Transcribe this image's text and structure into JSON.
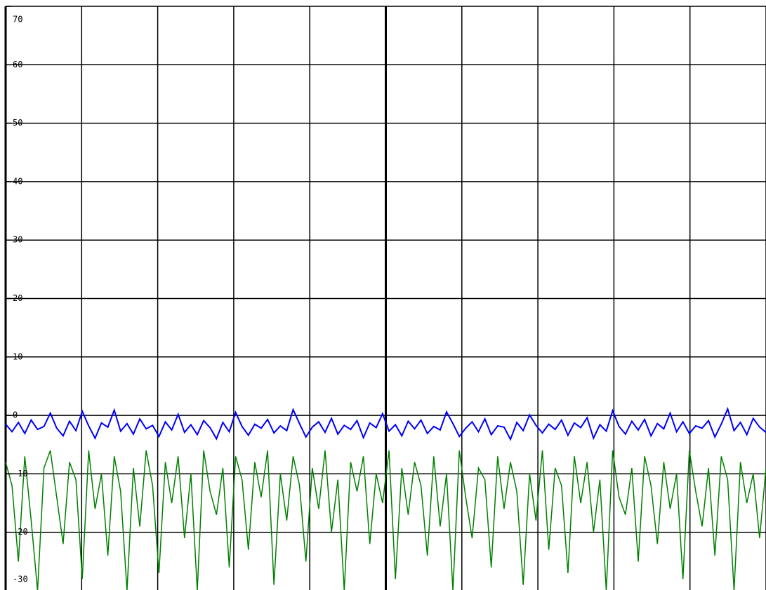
{
  "chart_data": {
    "type": "line",
    "ylim": [
      -30,
      70
    ],
    "yticks": [
      -30,
      -20,
      -10,
      0,
      10,
      20,
      30,
      40,
      50,
      60,
      70
    ],
    "xlim": [
      0,
      10
    ],
    "xticks": [
      0,
      1,
      2,
      3,
      4,
      5,
      6,
      7,
      8,
      9,
      10
    ],
    "grid": true,
    "series": [
      {
        "color": "#0000ff",
        "values": [
          -1.5,
          -2.8,
          -1.2,
          -3.1,
          -0.8,
          -2.4,
          -1.9,
          0.4,
          -2.2,
          -3.5,
          -1.0,
          -2.6,
          0.7,
          -1.8,
          -3.9,
          -1.3,
          -2.0,
          0.9,
          -2.7,
          -1.4,
          -3.2,
          -0.6,
          -2.3,
          -1.7,
          -3.6,
          -1.1,
          -2.5,
          0.2,
          -2.9,
          -1.6,
          -3.3,
          -0.9,
          -2.1,
          -4.0,
          -1.2,
          -2.8,
          0.5,
          -1.9,
          -3.4,
          -1.5,
          -2.2,
          -0.7,
          -3.0,
          -1.8,
          -2.6,
          1.0,
          -1.4,
          -3.7,
          -2.0,
          -1.1,
          -2.9,
          -0.5,
          -3.2,
          -1.7,
          -2.4,
          -0.9,
          -3.8,
          -1.3,
          -2.1,
          0.3,
          -2.7,
          -1.6,
          -3.5,
          -1.0,
          -2.3,
          -0.8,
          -3.1,
          -1.9,
          -2.5,
          0.6,
          -1.4,
          -3.6,
          -2.2,
          -1.1,
          -2.8,
          -0.6,
          -3.3,
          -1.8,
          -2.0,
          -4.1,
          -1.2,
          -2.6,
          0.1,
          -1.7,
          -3.0,
          -1.5,
          -2.4,
          -0.8,
          -3.4,
          -1.3,
          -2.1,
          -0.4,
          -3.9,
          -1.6,
          -2.7,
          0.8,
          -1.9,
          -3.2,
          -1.0,
          -2.5,
          -0.7,
          -3.5,
          -1.4,
          -2.3,
          0.4,
          -2.8,
          -1.1,
          -3.1,
          -1.8,
          -2.2,
          -0.9,
          -3.7,
          -1.5,
          1.1,
          -2.6,
          -1.2,
          -3.3,
          -0.5,
          -2.0,
          -2.9
        ]
      },
      {
        "color": "#008000",
        "values": [
          -8,
          -12,
          -25,
          -7,
          -18,
          -30,
          -9,
          -6,
          -14,
          -22,
          -8,
          -11,
          -28,
          -6,
          -16,
          -10,
          -24,
          -7,
          -13,
          -30,
          -9,
          -19,
          -6,
          -12,
          -27,
          -8,
          -15,
          -7,
          -21,
          -10,
          -30,
          -6,
          -13,
          -17,
          -9,
          -26,
          -7,
          -11,
          -23,
          -8,
          -14,
          -6,
          -29,
          -10,
          -18,
          -7,
          -12,
          -25,
          -9,
          -16,
          -6,
          -20,
          -11,
          -30,
          -8,
          -13,
          -7,
          -22,
          -10,
          -15,
          -6,
          -28,
          -9,
          -17,
          -8,
          -12,
          -24,
          -7,
          -19,
          -10,
          -30,
          -6,
          -14,
          -21,
          -9,
          -11,
          -26,
          -7,
          -16,
          -8,
          -13,
          -29,
          -10,
          -18,
          -6,
          -23,
          -9,
          -12,
          -27,
          -7,
          -15,
          -8,
          -20,
          -11,
          -30,
          -6,
          -14,
          -17,
          -9,
          -25,
          -7,
          -12,
          -22,
          -8,
          -16,
          -10,
          -28,
          -6,
          -13,
          -19,
          -9,
          -24,
          -7,
          -11,
          -30,
          -8,
          -15,
          -10,
          -21,
          -9
        ]
      }
    ]
  }
}
